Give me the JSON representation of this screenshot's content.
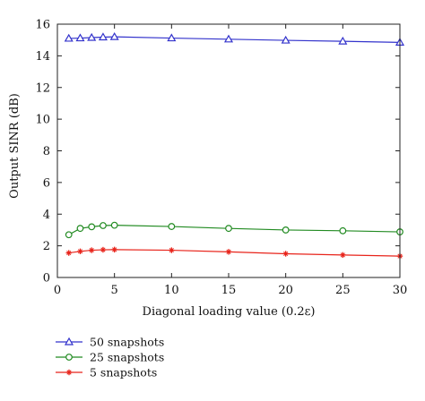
{
  "chart_data": {
    "type": "line",
    "xlabel": "Diagonal loading value (0.2ε)",
    "ylabel": "Output SINR (dB)",
    "xlim": [
      0,
      30
    ],
    "ylim": [
      0,
      16
    ],
    "xticks": [
      0,
      5,
      10,
      15,
      20,
      25,
      30
    ],
    "yticks": [
      0,
      2,
      4,
      6,
      8,
      10,
      12,
      14,
      16
    ],
    "grid": false,
    "legend_placement": "below",
    "x": [
      1,
      2,
      3,
      4,
      5,
      10,
      15,
      20,
      25,
      30
    ],
    "series": [
      {
        "name": "50 snapshots",
        "color": "#3333cc",
        "marker": "triangle",
        "values": [
          15.1,
          15.12,
          15.15,
          15.18,
          15.2,
          15.12,
          15.05,
          14.98,
          14.92,
          14.85
        ]
      },
      {
        "name": "25 snapshots",
        "color": "#228b22",
        "marker": "circle",
        "values": [
          2.7,
          3.1,
          3.2,
          3.28,
          3.3,
          3.22,
          3.1,
          3.0,
          2.95,
          2.88
        ]
      },
      {
        "name": "5 snapshots",
        "color": "#e8231a",
        "marker": "star",
        "values": [
          1.55,
          1.65,
          1.72,
          1.75,
          1.76,
          1.72,
          1.62,
          1.5,
          1.42,
          1.35
        ]
      }
    ]
  }
}
